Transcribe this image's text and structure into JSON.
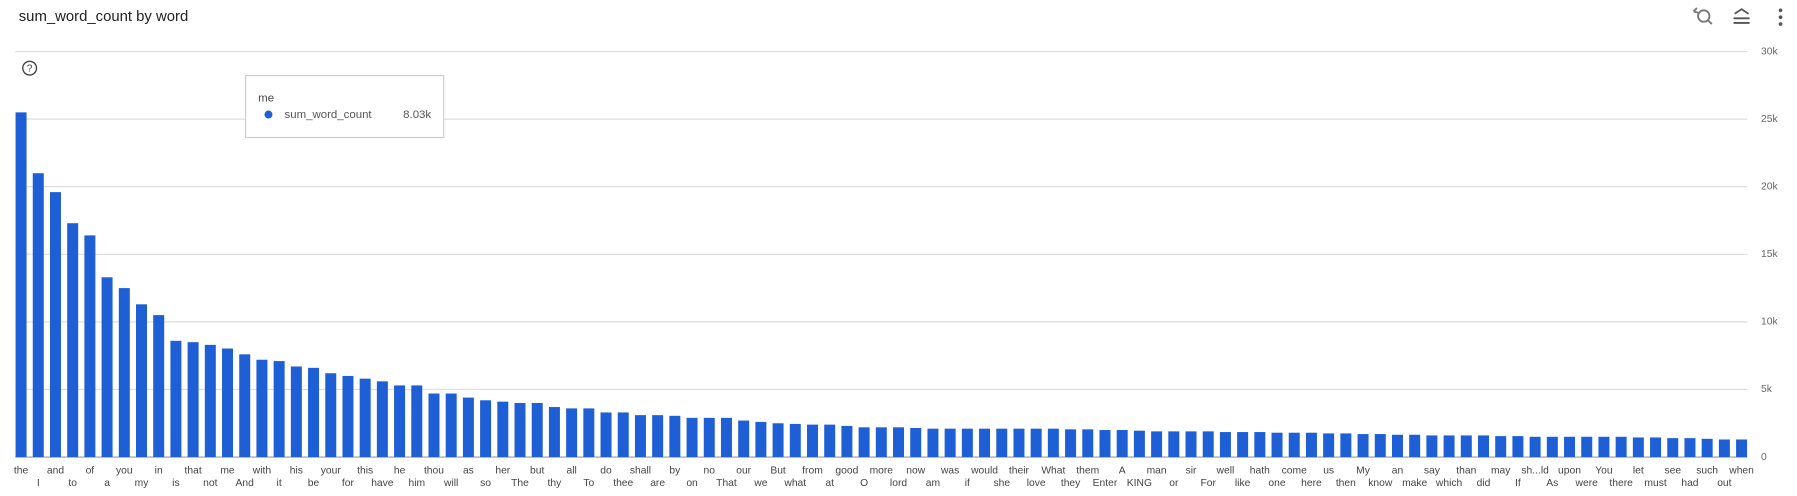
{
  "chart_data": {
    "type": "bar",
    "title": "sum_word_count by word",
    "series": [
      {
        "name": "sum_word_count",
        "color": "#1f5fd6",
        "values": [
          25500,
          21000,
          19600,
          17300,
          16400,
          13300,
          12500,
          11300,
          10500,
          8600,
          8500,
          8300,
          8030,
          7600,
          7200,
          7100,
          6700,
          6600,
          6200,
          6000,
          5800,
          5600,
          5300,
          5300,
          4700,
          4700,
          4400,
          4200,
          4100,
          4000,
          4000,
          3700,
          3600,
          3600,
          3300,
          3300,
          3100,
          3100,
          3050,
          2900,
          2900,
          2900,
          2700,
          2600,
          2500,
          2450,
          2400,
          2400,
          2300,
          2200,
          2200,
          2200,
          2150,
          2100,
          2100,
          2100,
          2100,
          2100,
          2100,
          2100,
          2100,
          2050,
          2050,
          2000,
          2000,
          1950,
          1900,
          1900,
          1900,
          1900,
          1850,
          1850,
          1850,
          1800,
          1800,
          1800,
          1750,
          1750,
          1700,
          1700,
          1650,
          1650,
          1600,
          1600,
          1600,
          1600,
          1550,
          1550,
          1500,
          1500,
          1500,
          1500,
          1500,
          1500,
          1450,
          1450,
          1400,
          1400,
          1350,
          1300,
          1300
        ]
      }
    ],
    "categories": [
      "the",
      "I",
      "and",
      "to",
      "of",
      "a",
      "you",
      "my",
      "in",
      "is",
      "that",
      "not",
      "me",
      "And",
      "with",
      "it",
      "his",
      "be",
      "your",
      "for",
      "this",
      "have",
      "he",
      "him",
      "thou",
      "will",
      "as",
      "so",
      "her",
      "The",
      "but",
      "thy",
      "all",
      "To",
      "do",
      "thee",
      "shall",
      "are",
      "by",
      "on",
      "no",
      "That",
      "our",
      "we",
      "But",
      "what",
      "from",
      "at",
      "good",
      "O",
      "more",
      "lord",
      "now",
      "am",
      "was",
      "if",
      "would",
      "she",
      "their",
      "love",
      "What",
      "they",
      "them",
      "Enter",
      "A",
      "KING",
      "man",
      "or",
      "sir",
      "For",
      "well",
      "like",
      "hath",
      "one",
      "come",
      "here",
      "us",
      "then",
      "My",
      "know",
      "an",
      "make",
      "say",
      "which",
      "than",
      "did",
      "may",
      "If",
      "sh...ld",
      "As",
      "upon",
      "were",
      "You",
      "there",
      "let",
      "must",
      "see",
      "had",
      "such",
      "out",
      "when"
    ],
    "ylim": [
      0,
      30000
    ],
    "yticks": [
      0,
      {
        "value": 5000,
        "label": "5k"
      },
      {
        "value": 10000,
        "label": "10k"
      },
      {
        "value": 15000,
        "label": "15k"
      },
      {
        "value": 20000,
        "label": "20k"
      },
      {
        "value": 25000,
        "label": "25k"
      },
      {
        "value": 30000,
        "label": "30k"
      }
    ],
    "grid": true,
    "tooltip": {
      "category": "me",
      "series": "sum_word_count",
      "value_label": "8.03k"
    }
  }
}
